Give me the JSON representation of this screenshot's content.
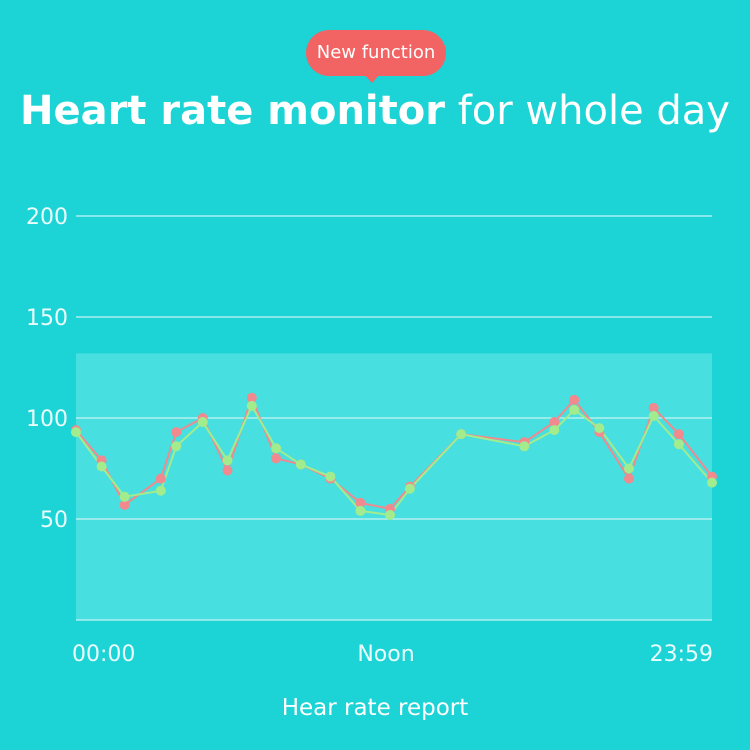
{
  "badge": {
    "label": "New function"
  },
  "title": {
    "bold": "Heart rate monitor",
    "rest": "for whole day"
  },
  "footer": {
    "label": "Hear rate report"
  },
  "colors": {
    "background": "#1cd3d6",
    "band": "#47dfdf",
    "grid": "#c9f3f4",
    "badge": "#f26463",
    "series_red": "#f08a8f",
    "series_green": "#a3ec8e"
  },
  "chart_data": {
    "type": "line",
    "ylim": [
      0,
      200
    ],
    "yticks": [
      50,
      100,
      150,
      200
    ],
    "xtick_labels": [
      "00:00",
      "Noon",
      "23:59"
    ],
    "xlim": [
      0,
      1440
    ],
    "normal_range": [
      0,
      132
    ],
    "grid": true,
    "series": [
      {
        "color": "#f08a8f",
        "x": [
          0,
          58,
          110,
          192,
          227,
          287,
          343,
          398,
          453,
          509,
          576,
          644,
          711,
          756,
          872,
          1015,
          1083,
          1128,
          1185,
          1252,
          1308,
          1365,
          1440
        ],
        "y": [
          94,
          79,
          57,
          70,
          93,
          100,
          74,
          110,
          80,
          77,
          70,
          58,
          55,
          66,
          92,
          88,
          98,
          109,
          93,
          70,
          105,
          92,
          71
        ]
      },
      {
        "color": "#a3ec8e",
        "x": [
          0,
          58,
          110,
          192,
          227,
          287,
          343,
          398,
          453,
          509,
          576,
          644,
          711,
          756,
          872,
          1015,
          1083,
          1128,
          1185,
          1252,
          1308,
          1365,
          1440
        ],
        "y": [
          93,
          76,
          61,
          64,
          86,
          98,
          79,
          106,
          85,
          77,
          71,
          54,
          52,
          65,
          92,
          86,
          94,
          104,
          95,
          75,
          101,
          87,
          68
        ]
      }
    ]
  }
}
